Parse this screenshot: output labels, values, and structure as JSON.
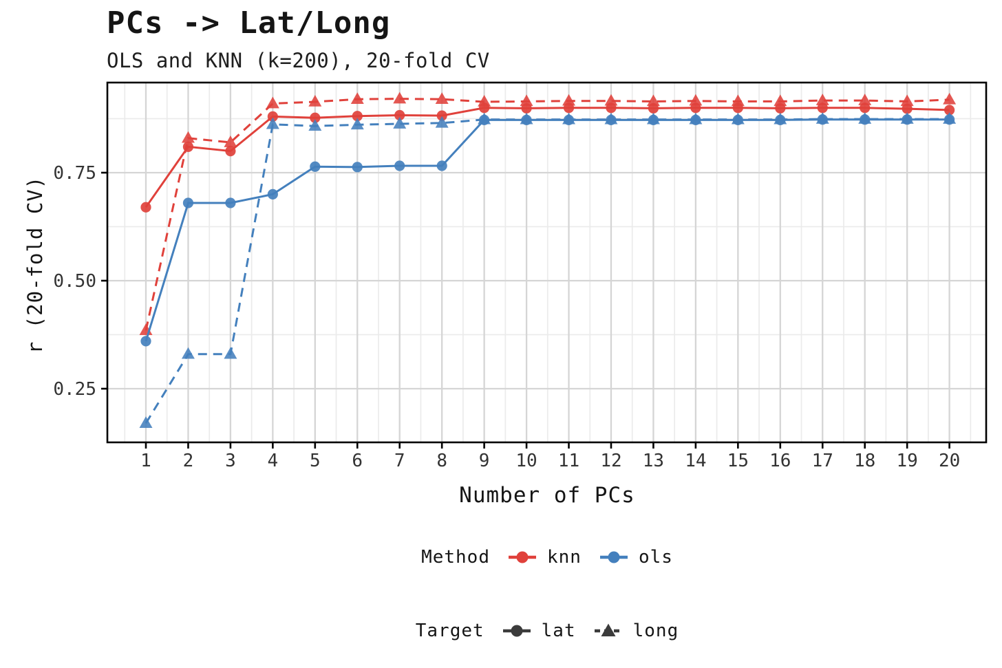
{
  "page": {
    "background": "#ffffff"
  },
  "chart_data": {
    "type": "line",
    "title": "PCs -> Lat/Long",
    "subtitle": "OLS and KNN (k=200), 20-fold CV",
    "xlabel": "Number of PCs",
    "ylabel": "r (20-fold CV)",
    "x": [
      1,
      2,
      3,
      4,
      5,
      6,
      7,
      8,
      9,
      10,
      11,
      12,
      13,
      14,
      15,
      16,
      17,
      18,
      19,
      20
    ],
    "xlim": [
      0.45,
      20.9
    ],
    "ylim": [
      0.126,
      0.959
    ],
    "yticks": [
      {
        "v": 0.25,
        "label": "0.25"
      },
      {
        "v": 0.5,
        "label": "0.50"
      },
      {
        "v": 0.75,
        "label": "0.75"
      }
    ],
    "y_minor_gridlines": [
      0.125,
      0.375,
      0.625,
      0.875
    ],
    "grid": "major+minor",
    "legend_position": "bottom",
    "series": [
      {
        "name": "knn-lat",
        "method": "knn",
        "target": "lat",
        "color": "#E0413B",
        "line": "solid",
        "marker": "circle",
        "values": [
          0.67,
          0.81,
          0.8,
          0.88,
          0.877,
          0.881,
          0.883,
          0.882,
          0.9,
          0.899,
          0.9,
          0.9,
          0.899,
          0.9,
          0.9,
          0.899,
          0.9,
          0.9,
          0.898,
          0.895
        ]
      },
      {
        "name": "knn-long",
        "method": "knn",
        "target": "long",
        "color": "#E0413B",
        "line": "dashed",
        "marker": "triangle",
        "values": [
          0.385,
          0.83,
          0.82,
          0.91,
          0.914,
          0.92,
          0.921,
          0.92,
          0.914,
          0.915,
          0.916,
          0.916,
          0.915,
          0.916,
          0.915,
          0.915,
          0.917,
          0.917,
          0.915,
          0.919
        ]
      },
      {
        "name": "ols-lat",
        "method": "ols",
        "target": "lat",
        "color": "#4480BD",
        "line": "solid",
        "marker": "circle",
        "values": [
          0.36,
          0.68,
          0.68,
          0.7,
          0.764,
          0.763,
          0.766,
          0.766,
          0.872,
          0.872,
          0.872,
          0.872,
          0.872,
          0.872,
          0.872,
          0.872,
          0.873,
          0.873,
          0.873,
          0.873
        ]
      },
      {
        "name": "ols-long",
        "method": "ols",
        "target": "long",
        "color": "#4480BD",
        "line": "dashed",
        "marker": "triangle",
        "values": [
          0.17,
          0.33,
          0.33,
          0.862,
          0.858,
          0.861,
          0.863,
          0.865,
          0.873,
          0.873,
          0.873,
          0.873,
          0.873,
          0.873,
          0.873,
          0.873,
          0.874,
          0.874,
          0.874,
          0.874
        ]
      }
    ],
    "legends": [
      {
        "id": "method",
        "title": "Method",
        "entries": [
          {
            "label": "knn",
            "color": "#E0413B",
            "marker": "circle",
            "line": "solid"
          },
          {
            "label": "ols",
            "color": "#4480BD",
            "marker": "circle",
            "line": "solid"
          }
        ]
      },
      {
        "id": "target",
        "title": "Target",
        "entries": [
          {
            "label": "lat",
            "color": "#3B3B3B",
            "marker": "circle",
            "line": "solid"
          },
          {
            "label": "long",
            "color": "#3B3B3B",
            "marker": "triangle",
            "line": "dashed"
          }
        ]
      }
    ],
    "colors": {
      "knn": "#E0413B",
      "ols": "#4480BD",
      "major_grid": "#D5D5D5",
      "minor_grid": "#EBEBEB",
      "panel_border": "#000000",
      "tick_label": "#333333",
      "text": "#151515"
    }
  }
}
